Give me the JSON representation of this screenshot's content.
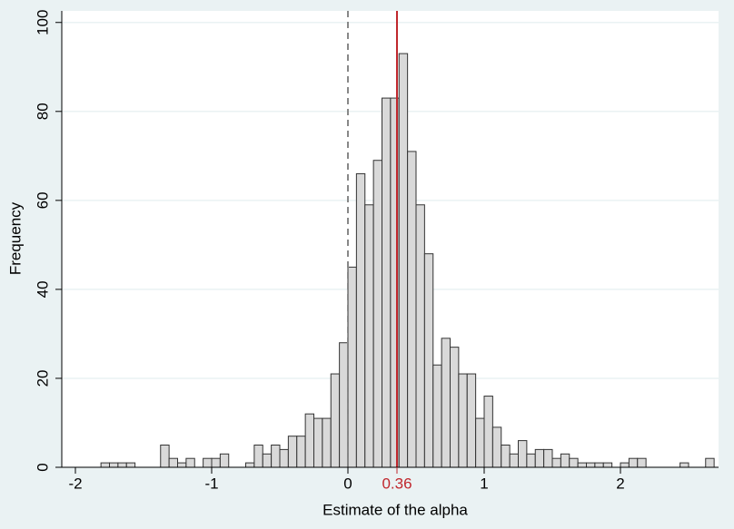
{
  "chart_data": {
    "type": "histogram",
    "x_label": "Estimate of the alpha",
    "y_label": "Frequency",
    "bins": [
      -1.8125,
      -1.75,
      -1.6875,
      -1.625,
      -1.5625,
      -1.5,
      -1.4375,
      -1.375,
      -1.3125,
      -1.25,
      -1.1875,
      -1.125,
      -1.0625,
      -1,
      -0.9375,
      -0.875,
      -0.8125,
      -0.75,
      -0.6875,
      -0.625,
      -0.5625,
      -0.5,
      -0.4375,
      -0.375,
      -0.3125,
      -0.25,
      -0.1875,
      -0.125,
      -0.0625,
      0,
      0.0625,
      0.125,
      0.1875,
      0.25,
      0.3125,
      0.375,
      0.4375,
      0.5,
      0.5625,
      0.625,
      0.6875,
      0.75,
      0.8125,
      0.875,
      0.9375,
      1,
      1.0625,
      1.125,
      1.1875,
      1.25,
      1.3125,
      1.375,
      1.4375,
      1.5,
      1.5625,
      1.625,
      1.6875,
      1.75,
      1.8125,
      1.875,
      1.9375,
      2,
      2.0625,
      2.125,
      2.1875,
      2.25,
      2.3125,
      2.375,
      2.4375,
      2.5,
      2.5625,
      2.625,
      2.6875
    ],
    "counts": [
      1,
      1,
      1,
      1,
      0,
      0,
      0,
      5,
      2,
      1,
      2,
      0,
      2,
      2,
      3,
      0,
      0,
      1,
      5,
      3,
      5,
      4,
      7,
      7,
      12,
      11,
      11,
      21,
      28,
      45,
      66,
      59,
      69,
      83,
      83,
      93,
      71,
      59,
      48,
      23,
      29,
      27,
      21,
      21,
      11,
      16,
      9,
      5,
      3,
      6,
      3,
      4,
      4,
      2,
      3,
      2,
      1,
      1,
      1,
      1,
      0,
      1,
      2,
      2,
      0,
      0,
      0,
      0,
      1,
      0,
      0,
      2
    ],
    "color": "#d9d9d9",
    "xlim": [
      -2.1,
      2.72
    ],
    "ylim": [
      0,
      102.6
    ],
    "xticks": [
      -2,
      -1,
      0,
      1,
      2
    ],
    "yticks": [
      0,
      20,
      40,
      60,
      80,
      100
    ],
    "grid": true,
    "reference_line": 0,
    "mean_line": {
      "value": 0.36,
      "color": "#c0272d"
    }
  }
}
